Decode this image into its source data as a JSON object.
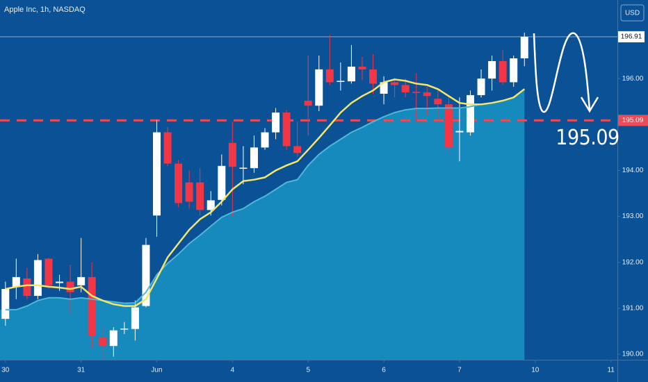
{
  "chart_data": {
    "type": "candlestick",
    "title": "Apple Inc, 1h, NASDAQ",
    "currency": "USD",
    "x": [
      0,
      1,
      2,
      3,
      4,
      5,
      6,
      7,
      8,
      9,
      10,
      11,
      12,
      13,
      14,
      15,
      16,
      17,
      18,
      19,
      20,
      21,
      22,
      23,
      24,
      25,
      26,
      27,
      28,
      29,
      30,
      31,
      32,
      33,
      34,
      35,
      36,
      37,
      38,
      39,
      40,
      41,
      42,
      43,
      44,
      45,
      46,
      47,
      48
    ],
    "open": [
      190.77,
      191.47,
      191.65,
      191.27,
      192.08,
      191.55,
      191.58,
      191.5,
      191.68,
      190.36,
      190.18,
      190.55,
      190.55,
      191.05,
      193.02,
      194.83,
      194.15,
      193.74,
      193.74,
      193.14,
      193.36,
      194.6,
      194.05,
      194.05,
      194.5,
      194.83,
      195.26,
      194.53,
      195.52,
      195.41,
      196.2,
      195.94,
      195.94,
      196.26,
      196.2,
      195.67,
      195.92,
      195.86,
      195.71,
      195.7,
      195.56,
      195.44,
      194.83,
      194.83,
      195.64,
      196.0,
      196.38,
      195.92,
      196.44
    ],
    "high": [
      191.58,
      192.08,
      191.88,
      192.18,
      192.1,
      191.73,
      191.95,
      192.53,
      192.0,
      190.59,
      190.59,
      190.7,
      191.17,
      192.53,
      195.1,
      194.95,
      194.23,
      194.0,
      194.05,
      193.55,
      194.35,
      195.06,
      194.53,
      194.76,
      194.92,
      195.36,
      195.32,
      195.06,
      196.5,
      196.5,
      196.95,
      196.35,
      196.73,
      196.47,
      196.53,
      196.05,
      196.02,
      196.0,
      196.12,
      195.82,
      195.74,
      195.59,
      195.59,
      195.74,
      196.2,
      196.5,
      196.62,
      196.5,
      197.0
    ],
    "low": [
      190.62,
      191.2,
      191.2,
      191.2,
      191.42,
      191.38,
      190.9,
      191.35,
      190.13,
      189.9,
      189.95,
      190.44,
      190.3,
      191.02,
      192.56,
      194.1,
      193.2,
      193.17,
      193.02,
      193.02,
      193.24,
      193.0,
      193.7,
      193.95,
      194.45,
      194.68,
      194.45,
      194.3,
      194.76,
      195.29,
      195.86,
      195.74,
      195.89,
      195.97,
      195.67,
      195.44,
      195.59,
      195.59,
      195.06,
      195.2,
      195.06,
      194.3,
      194.2,
      194.76,
      195.59,
      195.74,
      195.86,
      195.82,
      196.27
    ],
    "close": [
      191.42,
      191.68,
      191.27,
      192.05,
      191.5,
      191.58,
      191.35,
      191.68,
      190.4,
      190.18,
      190.52,
      190.56,
      191.02,
      192.38,
      194.83,
      194.15,
      193.29,
      193.32,
      193.14,
      193.35,
      194.1,
      194.08,
      194.06,
      194.5,
      194.83,
      195.26,
      194.53,
      194.38,
      195.41,
      196.2,
      195.92,
      195.95,
      196.26,
      196.2,
      195.89,
      195.92,
      195.86,
      195.7,
      195.7,
      195.62,
      195.44,
      194.5,
      194.86,
      195.64,
      196.0,
      196.38,
      195.92,
      196.44,
      196.91
    ],
    "up_color": "#ffffff",
    "down_color": "#f23645",
    "lines": [
      {
        "color": "#4fb8d8",
        "fill": "#1689bd",
        "values": [
          190.97,
          190.97,
          191.05,
          191.17,
          191.23,
          191.23,
          191.2,
          191.23,
          191.2,
          191.17,
          191.14,
          191.11,
          191.12,
          191.35,
          191.73,
          191.98,
          192.18,
          192.41,
          192.59,
          192.79,
          192.98,
          193.09,
          193.17,
          193.32,
          193.44,
          193.59,
          193.74,
          193.8,
          194.11,
          194.35,
          194.53,
          194.68,
          194.83,
          194.94,
          195.06,
          195.17,
          195.26,
          195.32,
          195.35,
          195.35,
          195.36,
          195.36,
          195.36,
          195.39,
          195.44,
          195.47,
          195.52,
          195.59,
          195.77
        ]
      },
      {
        "color": "#f5e66a",
        "values": [
          191.42,
          191.47,
          191.5,
          191.5,
          191.47,
          191.45,
          191.42,
          191.47,
          191.27,
          191.17,
          191.09,
          191.05,
          191.05,
          191.2,
          191.65,
          192.11,
          192.41,
          192.71,
          192.94,
          193.09,
          193.32,
          193.59,
          193.77,
          193.8,
          193.85,
          194.0,
          194.11,
          194.2,
          194.45,
          194.71,
          194.98,
          195.26,
          195.47,
          195.62,
          195.74,
          195.92,
          195.98,
          195.95,
          195.89,
          195.86,
          195.77,
          195.62,
          195.47,
          195.44,
          195.44,
          195.47,
          195.52,
          195.59,
          195.77
        ]
      }
    ],
    "xlim": [
      -0.5,
      56.6
    ],
    "xticks": [
      {
        "value": 0,
        "label": "30"
      },
      {
        "value": 7,
        "label": "31"
      },
      {
        "value": 14,
        "label": "Jun"
      },
      {
        "value": 21,
        "label": "4"
      },
      {
        "value": 28,
        "label": "5"
      },
      {
        "value": 35,
        "label": "6"
      },
      {
        "value": 42,
        "label": "7"
      },
      {
        "value": 49,
        "label": "10"
      },
      {
        "value": 56,
        "label": "11"
      }
    ],
    "ylim": [
      189.88,
      197.71
    ],
    "yticks": [
      {
        "value": 190,
        "label": "190.00"
      },
      {
        "value": 191,
        "label": "191.00"
      },
      {
        "value": 192,
        "label": "192.00"
      },
      {
        "value": 193,
        "label": "193.00"
      },
      {
        "value": 194,
        "label": "194.00"
      },
      {
        "value": 196,
        "label": "196.00"
      }
    ],
    "last_price": 196.91,
    "target": 195.09,
    "target_color": "#e84c58"
  }
}
